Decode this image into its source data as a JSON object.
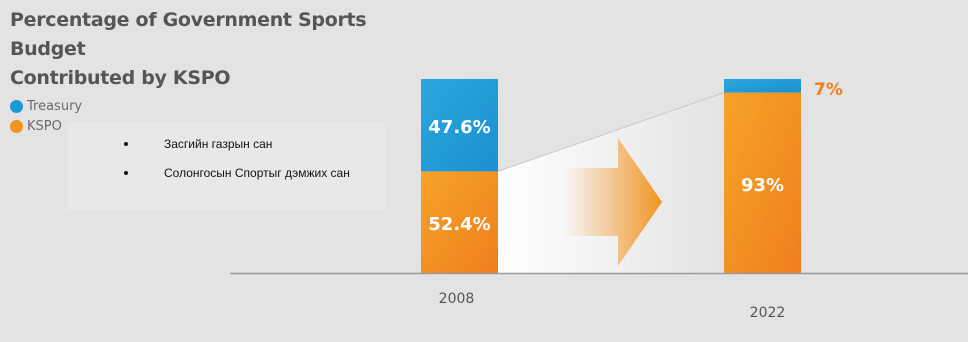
{
  "title_line1": "Percentage of Government Sports Budget",
  "title_line2": "Contributed by KSPO",
  "legend": [
    {
      "label": "Treasury",
      "color": "#1b9ad6"
    },
    {
      "label": "KSPO",
      "color": "#f39320"
    }
  ],
  "overlay_list": [
    "Засгийн газрын сан",
    "Солонгосын Спортыг дэмжих сан"
  ],
  "chart_data": {
    "type": "bar",
    "stacked": true,
    "categories": [
      "2008",
      "2022"
    ],
    "series": [
      {
        "name": "KSPO",
        "values": [
          52.4,
          93
        ],
        "color": "#f39320",
        "labels": [
          "52.4%",
          "93%"
        ]
      },
      {
        "name": "Treasury",
        "values": [
          47.6,
          7
        ],
        "color": "#1b9ad6",
        "labels": [
          "47.6%",
          "7%"
        ]
      }
    ],
    "ylim": [
      0,
      100
    ],
    "grid": false,
    "legend_position": "top-left",
    "xlabel": "",
    "ylabel": ""
  }
}
